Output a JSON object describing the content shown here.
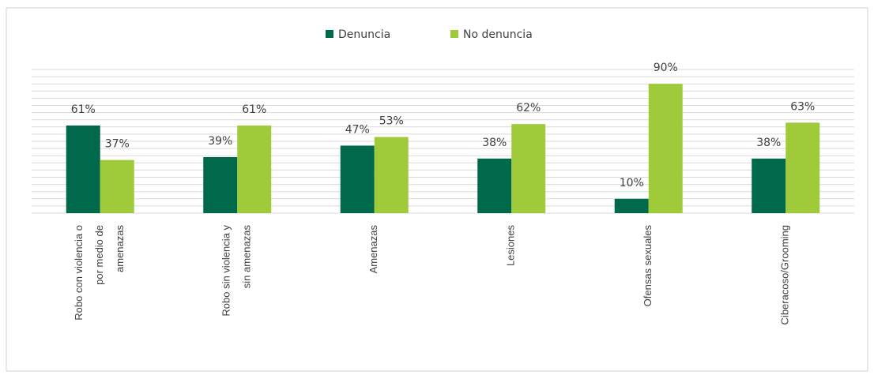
{
  "chart_data": {
    "type": "bar",
    "categories": [
      "Robo con violencia o por medio de amenazas",
      "Robo sin violencia y sin amenazas",
      "Amenazas",
      "Lesiones",
      "Ofensas sexuales",
      "Ciberacoso/Grooming"
    ],
    "series": [
      {
        "name": "Denuncia",
        "color": "#00694b",
        "values": [
          61,
          39,
          47,
          38,
          10,
          38
        ],
        "value_labels": [
          "61%",
          "39%",
          "47%",
          "38%",
          "10%",
          "38%"
        ]
      },
      {
        "name": "No denuncia",
        "color": "#9fcb3b",
        "values": [
          37,
          61,
          53,
          62,
          90,
          63
        ],
        "value_labels": [
          "37%",
          "61%",
          "53%",
          "62%",
          "90%",
          "63%"
        ]
      }
    ],
    "ylim": [
      0,
      100
    ],
    "yticks": [
      0,
      5,
      10,
      15,
      20,
      25,
      30,
      35,
      40,
      45,
      50,
      55,
      60,
      65,
      70,
      75,
      80,
      85,
      90,
      95,
      100
    ],
    "grid": true,
    "legend": "top"
  }
}
